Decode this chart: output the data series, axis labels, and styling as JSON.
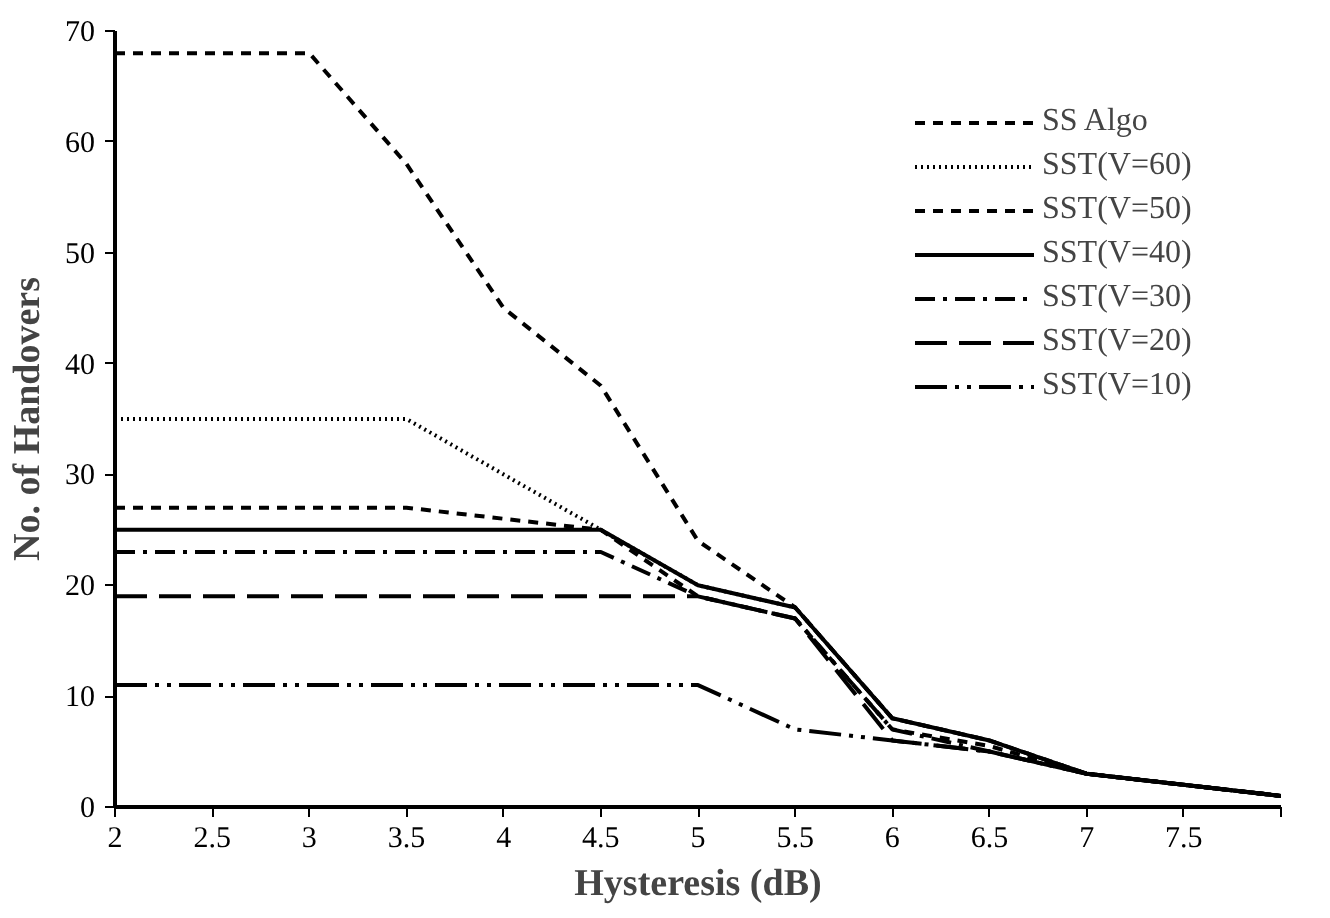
{
  "chart_data": {
    "type": "line",
    "xlabel": "Hysteresis (dB)",
    "ylabel": "No. of Handovers",
    "x": [
      2,
      2.5,
      3,
      3.5,
      4,
      4.5,
      5,
      5.5,
      6,
      6.5,
      7,
      7.5,
      8
    ],
    "xlim": [
      2,
      8
    ],
    "xticks": [
      2,
      2.5,
      3,
      3.5,
      4,
      4.5,
      5,
      5.5,
      6,
      6.5,
      7,
      7.5,
      {
        "value": 8,
        "label": null
      }
    ],
    "ylim": [
      0,
      70
    ],
    "yticks": [
      0,
      10,
      20,
      30,
      40,
      50,
      60,
      70
    ],
    "grid": false,
    "legend": "right",
    "marker": "none",
    "series": [
      {
        "name": "SS Algo",
        "color": "#000000",
        "line_style": "dashed",
        "values": [
          68,
          68,
          68,
          58,
          45,
          38,
          24,
          18,
          8,
          6,
          3,
          2,
          1
        ]
      },
      {
        "name": "SST(V=60)",
        "color": "#000000",
        "line_style": "dotted",
        "values": [
          35,
          35,
          35,
          35,
          30,
          25,
          20,
          18,
          8,
          6,
          3,
          2,
          1
        ]
      },
      {
        "name": "SST(V=50)",
        "color": "#000000",
        "line_style": "dashed",
        "values": [
          27,
          27,
          27,
          27,
          26,
          25,
          19,
          17,
          7,
          5.5,
          3,
          2,
          1
        ]
      },
      {
        "name": "SST(V=40)",
        "color": "#000000",
        "line_style": "solid",
        "values": [
          25,
          25,
          25,
          25,
          25,
          25,
          20,
          18,
          8,
          6,
          3,
          2,
          1
        ]
      },
      {
        "name": "SST(V=30)",
        "color": "#000000",
        "line_style": "dashdot",
        "values": [
          23,
          23,
          23,
          23,
          23,
          23,
          19,
          17,
          7,
          5,
          3,
          2,
          1
        ]
      },
      {
        "name": "SST(V=20)",
        "color": "#000000",
        "line_style": "longdash",
        "values": [
          19,
          19,
          19,
          19,
          19,
          19,
          19,
          17,
          6,
          5,
          3,
          2,
          1
        ]
      },
      {
        "name": "SST(V=10)",
        "color": "#000000",
        "line_style": "dashdotdot",
        "values": [
          11,
          11,
          11,
          11,
          11,
          11,
          11,
          7,
          6,
          5,
          3,
          2,
          1
        ]
      }
    ]
  }
}
